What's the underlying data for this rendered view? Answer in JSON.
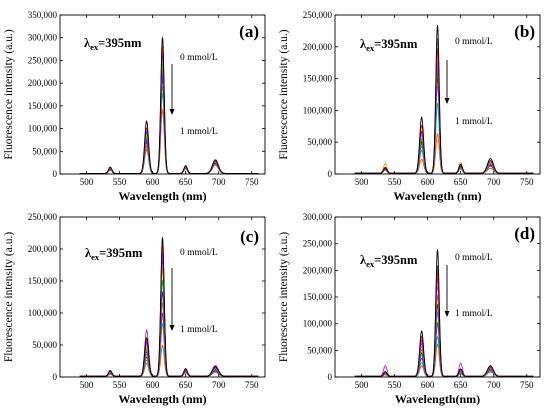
{
  "figure": {
    "y_title": "Fluorescence intensity (a.u.)",
    "excitation_symbol": "λ",
    "excitation_subscript": "ex",
    "excitation_value": "=395nm",
    "high_label": "0 mmol/L",
    "low_label": "1 mmol/L",
    "axis_color": "#000000"
  },
  "chart_data": [
    {
      "type": "line",
      "panel_label": "(a)",
      "xlabel": "Wavelength (nm)",
      "ylabel": "Fluorescence intensity (a.u.)",
      "xlim": [
        460,
        770
      ],
      "ylim": [
        0,
        350000
      ],
      "x_ticks": [
        500,
        550,
        600,
        650,
        700,
        750
      ],
      "x_tick_labels": [
        "500",
        "550",
        "600",
        "650",
        "700",
        "750"
      ],
      "y_ticks": [
        0,
        50000,
        100000,
        150000,
        200000,
        250000,
        300000,
        350000
      ],
      "y_tick_labels": [
        "0",
        "50,000",
        "100,000",
        "150,000",
        "200,000",
        "250,000",
        "300,000",
        "350,000"
      ],
      "peaks_nm": [
        536,
        591,
        615,
        650,
        695
      ],
      "series": [
        {
          "color": "#000000",
          "values": [
            14000,
            115000,
            300000,
            17000,
            30000
          ]
        },
        {
          "color": "#e8161b",
          "values": [
            13000,
            100000,
            280000,
            16000,
            28000
          ]
        },
        {
          "color": "#1f3cff",
          "values": [
            12000,
            92000,
            268000,
            15000,
            27000
          ]
        },
        {
          "color": "#d4a010",
          "values": [
            11000,
            86000,
            258000,
            14000,
            26000
          ]
        },
        {
          "color": "#2aa02a",
          "values": [
            10000,
            80000,
            245000,
            13000,
            25000
          ]
        },
        {
          "color": "#c01fd0",
          "values": [
            10000,
            76000,
            232000,
            13000,
            24000
          ]
        },
        {
          "color": "#1a1f9e",
          "values": [
            9000,
            72000,
            220000,
            12000,
            23000
          ]
        },
        {
          "color": "#7a1fa0",
          "values": [
            9000,
            68000,
            210000,
            12000,
            22000
          ]
        },
        {
          "color": "#808080",
          "values": [
            8000,
            62000,
            192000,
            11000,
            21000
          ]
        },
        {
          "color": "#1fb8c4",
          "values": [
            8000,
            58000,
            176000,
            11000,
            20000
          ]
        },
        {
          "color": "#e06010",
          "values": [
            7000,
            52000,
            140000,
            10000,
            18000
          ]
        }
      ]
    },
    {
      "type": "line",
      "panel_label": "(b)",
      "xlabel": "Wavelength (nm)",
      "ylabel": "Fluorescence intensity (a.u.)",
      "xlim": [
        460,
        770
      ],
      "ylim": [
        0,
        250000
      ],
      "x_ticks": [
        500,
        550,
        600,
        650,
        700,
        750
      ],
      "x_tick_labels": [
        "500",
        "550",
        "600",
        "650",
        "700",
        "750"
      ],
      "y_ticks": [
        0,
        50000,
        100000,
        150000,
        200000,
        250000
      ],
      "y_tick_labels": [
        "0",
        "50,000",
        "100,000",
        "150,000",
        "200,000",
        "250,000"
      ],
      "peaks_nm": [
        536,
        591,
        615,
        650,
        695
      ],
      "series": [
        {
          "color": "#000000",
          "values": [
            9000,
            88000,
            233000,
            14000,
            23000
          ]
        },
        {
          "color": "#e8161b",
          "values": [
            8000,
            75000,
            212000,
            13000,
            20000
          ]
        },
        {
          "color": "#1f3cff",
          "values": [
            7000,
            66000,
            196000,
            12000,
            18000
          ]
        },
        {
          "color": "#d4a010",
          "values": [
            15000,
            60000,
            188000,
            17000,
            16000
          ]
        },
        {
          "color": "#2aa02a",
          "values": [
            8000,
            54000,
            176000,
            11000,
            15000
          ]
        },
        {
          "color": "#c01fd0",
          "values": [
            9000,
            64000,
            168000,
            12000,
            14000
          ]
        },
        {
          "color": "#1a1f9e",
          "values": [
            7000,
            50000,
            160000,
            10000,
            13000
          ]
        },
        {
          "color": "#7a1fa0",
          "values": [
            6000,
            47000,
            150000,
            10000,
            12000
          ]
        },
        {
          "color": "#808080",
          "values": [
            7000,
            42000,
            138000,
            9000,
            20000
          ]
        },
        {
          "color": "#1fb8c4",
          "values": [
            6000,
            36000,
            110000,
            8000,
            11000
          ]
        },
        {
          "color": "#e06010",
          "values": [
            5000,
            22000,
            62000,
            7000,
            8000
          ]
        }
      ]
    },
    {
      "type": "line",
      "panel_label": "(c)",
      "xlabel": "Wavelength (nm)",
      "ylabel": "Fluorescence intensity (a.u.)",
      "xlim": [
        460,
        770
      ],
      "ylim": [
        0,
        250000
      ],
      "x_ticks": [
        500,
        550,
        600,
        650,
        700,
        750
      ],
      "x_tick_labels": [
        "500",
        "550",
        "600",
        "650",
        "700",
        "750"
      ],
      "y_ticks": [
        0,
        50000,
        100000,
        150000,
        200000,
        250000
      ],
      "y_tick_labels": [
        "0",
        "50,000",
        "100,000",
        "150,000",
        "200,000",
        "250,000"
      ],
      "peaks_nm": [
        536,
        591,
        615,
        650,
        695
      ],
      "series": [
        {
          "color": "#000000",
          "values": [
            9000,
            60000,
            217000,
            12000,
            15000
          ]
        },
        {
          "color": "#e8161b",
          "values": [
            8000,
            56000,
            205000,
            11000,
            14000
          ]
        },
        {
          "color": "#1f3cff",
          "values": [
            7000,
            52000,
            195000,
            10000,
            13000
          ]
        },
        {
          "color": "#c01fd0",
          "values": [
            8000,
            72000,
            182000,
            11000,
            17000
          ]
        },
        {
          "color": "#d4a010",
          "values": [
            6000,
            46000,
            170000,
            9000,
            12000
          ]
        },
        {
          "color": "#2aa02a",
          "values": [
            6000,
            42000,
            150000,
            9000,
            11000
          ]
        },
        {
          "color": "#1a1f9e",
          "values": [
            5000,
            38000,
            132000,
            8000,
            10000
          ]
        },
        {
          "color": "#808080",
          "values": [
            5000,
            34000,
            115000,
            8000,
            9000
          ]
        },
        {
          "color": "#7a1fa0",
          "values": [
            4000,
            30000,
            98000,
            7000,
            8000
          ]
        },
        {
          "color": "#1fb8c4",
          "values": [
            4000,
            25000,
            82000,
            6000,
            7000
          ]
        },
        {
          "color": "#e06010",
          "values": [
            3000,
            20000,
            48000,
            5000,
            6000
          ]
        }
      ]
    },
    {
      "type": "line",
      "panel_label": "(d)",
      "xlabel": "Wavelength(nm)",
      "ylabel": "Fluorescence intensity (a.u.)",
      "xlim": [
        460,
        770
      ],
      "ylim": [
        0,
        300000
      ],
      "x_ticks": [
        500,
        550,
        600,
        650,
        700,
        750
      ],
      "x_tick_labels": [
        "500",
        "550",
        "600",
        "650",
        "700",
        "750"
      ],
      "y_ticks": [
        0,
        50000,
        100000,
        150000,
        200000,
        250000,
        300000
      ],
      "y_tick_labels": [
        "0",
        "50,000",
        "100,000",
        "150,000",
        "200,000",
        "250,000",
        "300,000"
      ],
      "peaks_nm": [
        536,
        591,
        615,
        650,
        695
      ],
      "series": [
        {
          "color": "#000000",
          "values": [
            9000,
            85000,
            238000,
            14000,
            20000
          ]
        },
        {
          "color": "#e8161b",
          "values": [
            8000,
            75000,
            208000,
            13000,
            18000
          ]
        },
        {
          "color": "#1f3cff",
          "values": [
            7000,
            68000,
            198000,
            12000,
            17000
          ]
        },
        {
          "color": "#c01fd0",
          "values": [
            20000,
            62000,
            185000,
            25000,
            16000
          ]
        },
        {
          "color": "#d4a010",
          "values": [
            6000,
            56000,
            170000,
            10000,
            15000
          ]
        },
        {
          "color": "#2aa02a",
          "values": [
            6000,
            50000,
            152000,
            10000,
            14000
          ]
        },
        {
          "color": "#1a1f9e",
          "values": [
            5000,
            44000,
            135000,
            9000,
            13000
          ]
        },
        {
          "color": "#808080",
          "values": [
            5000,
            40000,
            120000,
            8000,
            12000
          ]
        },
        {
          "color": "#7a1fa0",
          "values": [
            4000,
            34000,
            100000,
            7000,
            11000
          ]
        },
        {
          "color": "#1fb8c4",
          "values": [
            4000,
            26000,
            75000,
            6000,
            9000
          ]
        },
        {
          "color": "#e06010",
          "values": [
            3000,
            20000,
            60000,
            5000,
            8000
          ]
        }
      ]
    }
  ]
}
